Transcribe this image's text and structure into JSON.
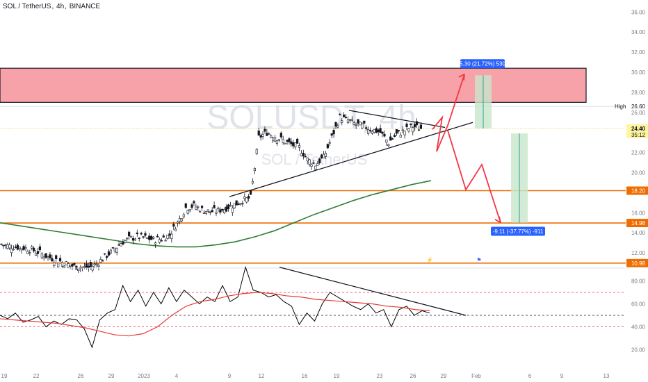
{
  "header": {
    "pair": "SOL / TetherUS",
    "timeframe": "4h",
    "exchange": "BINANCE"
  },
  "watermark": {
    "symbol": "SOLUSDT, 4h",
    "name": "SOL / TetherUS"
  },
  "colors": {
    "up": "#131722",
    "down": "#131722",
    "ma": "#2e7d32",
    "resistance_zone": "#f7a1a8",
    "level_line": "#ef6c00",
    "rsi": "#000000",
    "rsi_ma": "#e53935",
    "projection": "#f23645",
    "target_zone": "#c8e6c9",
    "label_blue": "#2962ff"
  },
  "price_axis": {
    "ticks": [
      "36.00",
      "34.00",
      "32.00",
      "30.00",
      "28.00",
      "26.00",
      "24.00",
      "22.00",
      "20.00",
      "18.00",
      "16.00",
      "14.00",
      "12.00"
    ],
    "high_label": "High",
    "high_value": "26.60",
    "current_price": "24.40",
    "countdown": "35:12",
    "level_labels": [
      "18.20",
      "14.98",
      "10.98"
    ]
  },
  "rsi_axis": {
    "ticks": [
      "80.00",
      "60.00",
      "40.00",
      "20.00"
    ]
  },
  "time_axis": {
    "labels": [
      "19",
      "22",
      "26",
      "29",
      "2023",
      "4",
      "9",
      "12",
      "16",
      "19",
      "23",
      "26",
      "29",
      "Feb",
      "6",
      "9",
      "13"
    ]
  },
  "annotations": {
    "long_target": "5.30 (21.72%) 530",
    "short_target": "-9.11 (-37.77%) -911"
  },
  "chart_data": [
    {
      "type": "line",
      "title": "SOLUSDT, 4h",
      "ylim": [
        10,
        37
      ],
      "x_range": [
        "Dec 19",
        "Feb 14"
      ],
      "grid": false,
      "series": [
        {
          "values": [
            12.9,
            12.7,
            12.6,
            12.5,
            12.3,
            12.0,
            11.6,
            11.3,
            11.0,
            10.7,
            10.6,
            10.5,
            10.9,
            11.6,
            12.2,
            13.0,
            13.4,
            13.6,
            13.5,
            13.3,
            13.4,
            13.8,
            15.0,
            16.5,
            16.7,
            16.3,
            16.1,
            16.2,
            16.5,
            16.8,
            17.2,
            17.5,
            23.5,
            24.0,
            23.6,
            23.2,
            22.8,
            22.5,
            21.3,
            20.8,
            21.5,
            23.5,
            25.5,
            25.2,
            24.8,
            24.6,
            24.3,
            24.0,
            23.0,
            23.8,
            24.2,
            24.6,
            24.4
          ]
        },
        {
          "values": [
            15.0,
            14.7,
            14.4,
            14.1,
            13.8,
            13.5,
            13.2,
            12.9,
            12.7,
            12.6,
            12.6,
            12.8,
            13.1,
            13.6,
            14.2,
            15.0,
            15.8,
            16.5,
            17.2,
            17.8,
            18.3,
            18.8,
            19.2
          ]
        }
      ],
      "levels": [
        18.2,
        14.98,
        10.98
      ],
      "resistance_zone": [
        27.0,
        30.4
      ],
      "high": 26.6,
      "current": 24.4,
      "targets": {
        "long": 29.7,
        "short": 15.0
      }
    },
    {
      "type": "line",
      "title": "RSI",
      "ylim": [
        10,
        95
      ],
      "series": [
        {
          "values": [
            50,
            47,
            52,
            44,
            46,
            49,
            40,
            45,
            42,
            47,
            46,
            38,
            22,
            46,
            52,
            55,
            76,
            62,
            72,
            58,
            70,
            60,
            74,
            62,
            72,
            66,
            60,
            66,
            62,
            76,
            62,
            66,
            92,
            72,
            70,
            66,
            68,
            62,
            58,
            42,
            52,
            45,
            60,
            70,
            66,
            62,
            58,
            55,
            60,
            52,
            55,
            40,
            55,
            58,
            50,
            54,
            52
          ]
        },
        {
          "values": [
            47,
            46,
            45,
            44,
            43,
            41,
            39,
            36,
            33,
            32,
            34,
            40,
            50,
            58,
            62,
            64,
            67,
            69,
            70,
            69,
            67,
            66,
            64,
            63,
            62,
            61,
            60,
            58,
            57,
            55,
            54
          ]
        }
      ],
      "levels": [
        70,
        50,
        40
      ]
    }
  ]
}
